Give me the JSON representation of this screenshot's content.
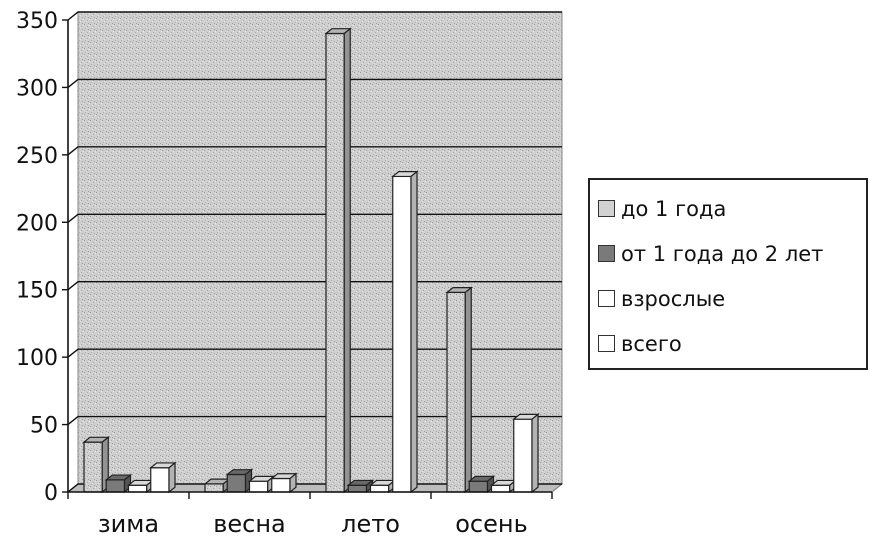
{
  "chart_data": {
    "type": "bar",
    "title": "",
    "xlabel": "",
    "ylabel": "",
    "categories": [
      "зима",
      "весна",
      "лето",
      "осень"
    ],
    "ylim": [
      0,
      350
    ],
    "yticks": [
      0,
      50,
      100,
      150,
      200,
      250,
      300,
      350
    ],
    "grid": true,
    "legend_position": "right",
    "series": [
      {
        "name": "до 1 года",
        "values": [
          37,
          6,
          340,
          148
        ],
        "color": "#d2d2d2"
      },
      {
        "name": "от 1 года до 2 лет",
        "values": [
          9,
          13,
          5,
          8
        ],
        "color": "#7a7a7a"
      },
      {
        "name": "взрослые",
        "values": [
          5,
          8,
          5,
          5
        ],
        "color": "#ffffff"
      },
      {
        "name": "всего",
        "values": [
          18,
          10,
          234,
          54
        ],
        "color": "#ffffff"
      }
    ]
  }
}
